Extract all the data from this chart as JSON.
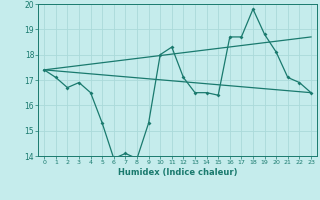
{
  "xlabel": "Humidex (Indice chaleur)",
  "x": [
    0,
    1,
    2,
    3,
    4,
    5,
    6,
    7,
    8,
    9,
    10,
    11,
    12,
    13,
    14,
    15,
    16,
    17,
    18,
    19,
    20,
    21,
    22,
    23
  ],
  "y_main": [
    17.4,
    17.1,
    16.7,
    16.9,
    16.5,
    15.3,
    13.9,
    14.1,
    13.9,
    15.3,
    18.0,
    18.3,
    17.1,
    16.5,
    16.5,
    16.4,
    18.7,
    18.7,
    19.8,
    18.8,
    18.1,
    17.1,
    16.9,
    16.5
  ],
  "trend1_x": [
    0,
    23
  ],
  "trend1_y": [
    17.4,
    18.7
  ],
  "trend2_x": [
    0,
    23
  ],
  "trend2_y": [
    17.4,
    16.5
  ],
  "ylim": [
    14,
    20
  ],
  "yticks": [
    14,
    15,
    16,
    17,
    18,
    19,
    20
  ],
  "xlim": [
    -0.5,
    23.5
  ],
  "bg_color": "#c5ecec",
  "line_color": "#1a7a6e",
  "grid_color": "#aadada"
}
